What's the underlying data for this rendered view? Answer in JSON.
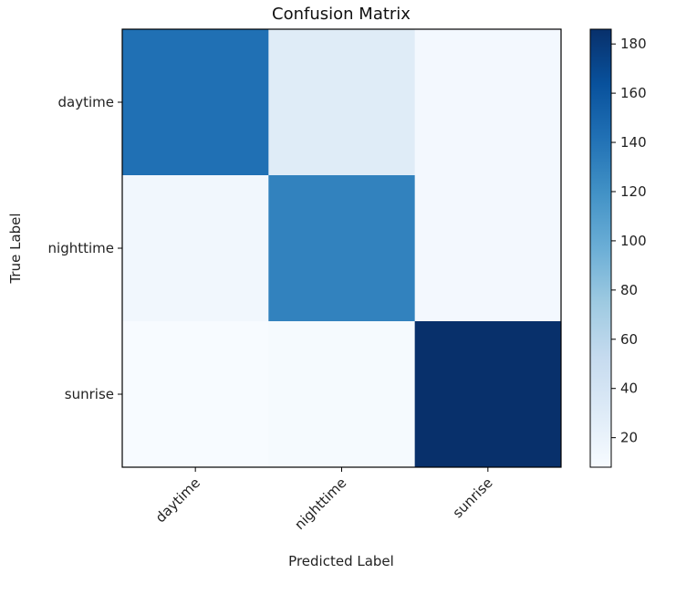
{
  "chart_data": {
    "type": "heatmap",
    "title": "Confusion Matrix",
    "xlabel": "Predicted Label",
    "ylabel": "True Label",
    "x_categories": [
      "daytime",
      "nighttime",
      "sunrise"
    ],
    "y_categories": [
      "daytime",
      "nighttime",
      "sunrise"
    ],
    "values": [
      [
        142,
        29,
        12
      ],
      [
        13,
        130,
        12
      ],
      [
        8,
        10,
        186
      ]
    ],
    "colorscale": "Blues",
    "colorbar": {
      "min": 8,
      "max": 186,
      "ticks": [
        20,
        40,
        60,
        80,
        100,
        120,
        140,
        160,
        180
      ]
    }
  }
}
